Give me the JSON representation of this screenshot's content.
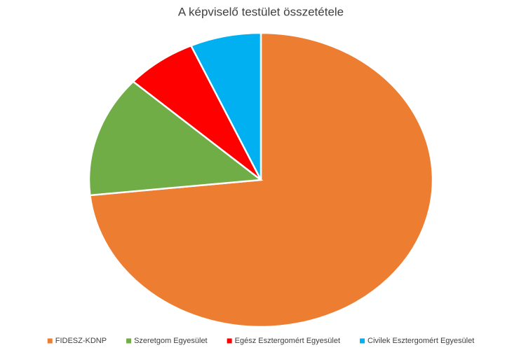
{
  "chart_data": {
    "type": "pie",
    "title": "A képviselő testület összetétele",
    "categories": [
      "FIDESZ-KDNP",
      "Szeretgom Egyesület",
      "Egész Esztergomért Egyesület",
      "Civilek Esztergomért Egyesület"
    ],
    "values": [
      11,
      2,
      1,
      1
    ],
    "colors": [
      "#ed7d31",
      "#70ad47",
      "#ff0000",
      "#00b0f0"
    ],
    "legend": "bottom"
  }
}
